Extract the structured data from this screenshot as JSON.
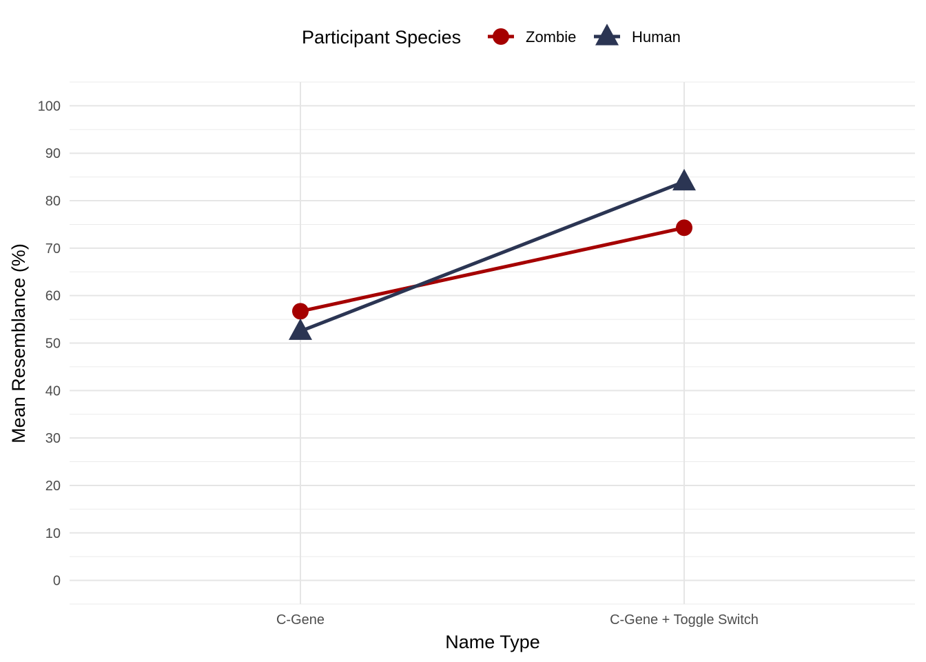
{
  "chart_data": {
    "type": "line",
    "categories": [
      "C-Gene",
      "C-Gene + Toggle Switch"
    ],
    "series": [
      {
        "name": "Zombie",
        "values": [
          56.7,
          74.3
        ],
        "color": "#A50000",
        "marker": "circle"
      },
      {
        "name": "Human",
        "values": [
          52.5,
          84.0
        ],
        "color": "#2B3553",
        "marker": "triangle"
      }
    ],
    "xlabel": "Name Type",
    "ylabel": "Mean Resemblance (%)",
    "ylim": [
      -5,
      105
    ],
    "yticks": [
      0,
      10,
      20,
      30,
      40,
      50,
      60,
      70,
      80,
      90,
      100
    ],
    "legend": {
      "title": "Participant Species",
      "position": "top"
    },
    "grid": true
  }
}
